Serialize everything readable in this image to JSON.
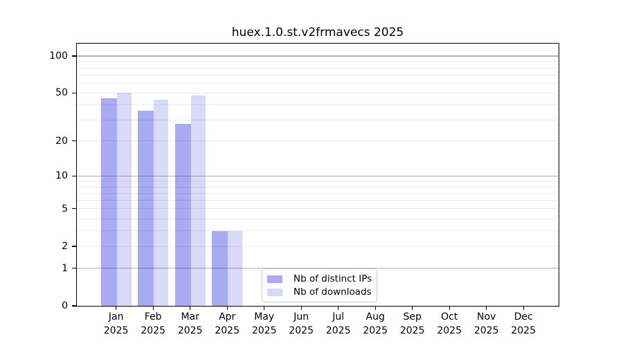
{
  "chart_data": {
    "type": "bar",
    "title": "huex.1.0.st.v2frmavecs 2025",
    "categories": [
      "Jan 2025",
      "Feb 2025",
      "Mar 2025",
      "Apr 2025",
      "May 2025",
      "Jun 2025",
      "Jul 2025",
      "Aug 2025",
      "Sep 2025",
      "Oct 2025",
      "Nov 2025",
      "Dec 2025"
    ],
    "series": [
      {
        "name": "Nb of distinct IPs",
        "color": "#a9a9f4",
        "values": [
          45,
          36,
          28,
          3,
          0,
          0,
          0,
          0,
          0,
          0,
          0,
          0
        ]
      },
      {
        "name": "Nb of downloads",
        "color": "#d9d9f8",
        "values": [
          50,
          44,
          48,
          3,
          0,
          0,
          0,
          0,
          0,
          0,
          0,
          0
        ]
      }
    ],
    "xlabel": "",
    "ylabel": "",
    "y_scale": "log1p",
    "ylim": [
      0,
      126
    ],
    "y_ticks": [
      0,
      1,
      2,
      5,
      10,
      20,
      50,
      100
    ],
    "grid": {
      "enabled": true,
      "major": [
        1,
        10,
        100
      ],
      "minor": [
        2,
        3,
        4,
        5,
        6,
        7,
        8,
        9,
        20,
        30,
        40,
        50,
        60,
        70,
        80,
        90
      ]
    },
    "legend_position": "lower center inside plot"
  }
}
